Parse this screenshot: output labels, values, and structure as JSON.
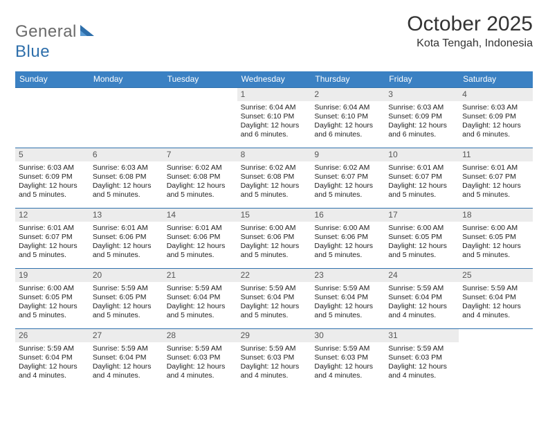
{
  "logo": {
    "general": "General",
    "blue": "Blue",
    "sail_color": "#2e6fab"
  },
  "title": "October 2025",
  "subtitle": "Kota Tengah, Indonesia",
  "colors": {
    "header_bg": "#3b81c3",
    "header_text": "#ffffff",
    "cell_head_bg": "#ececec",
    "border": "#2e6fab",
    "body_text": "#222222"
  },
  "day_headers": [
    "Sunday",
    "Monday",
    "Tuesday",
    "Wednesday",
    "Thursday",
    "Friday",
    "Saturday"
  ],
  "weeks": [
    [
      {
        "num": "",
        "lines": [
          "",
          "",
          "",
          ""
        ]
      },
      {
        "num": "",
        "lines": [
          "",
          "",
          "",
          ""
        ]
      },
      {
        "num": "",
        "lines": [
          "",
          "",
          "",
          ""
        ]
      },
      {
        "num": "1",
        "lines": [
          "Sunrise: 6:04 AM",
          "Sunset: 6:10 PM",
          "Daylight: 12 hours",
          "and 6 minutes."
        ]
      },
      {
        "num": "2",
        "lines": [
          "Sunrise: 6:04 AM",
          "Sunset: 6:10 PM",
          "Daylight: 12 hours",
          "and 6 minutes."
        ]
      },
      {
        "num": "3",
        "lines": [
          "Sunrise: 6:03 AM",
          "Sunset: 6:09 PM",
          "Daylight: 12 hours",
          "and 6 minutes."
        ]
      },
      {
        "num": "4",
        "lines": [
          "Sunrise: 6:03 AM",
          "Sunset: 6:09 PM",
          "Daylight: 12 hours",
          "and 6 minutes."
        ]
      }
    ],
    [
      {
        "num": "5",
        "lines": [
          "Sunrise: 6:03 AM",
          "Sunset: 6:09 PM",
          "Daylight: 12 hours",
          "and 5 minutes."
        ]
      },
      {
        "num": "6",
        "lines": [
          "Sunrise: 6:03 AM",
          "Sunset: 6:08 PM",
          "Daylight: 12 hours",
          "and 5 minutes."
        ]
      },
      {
        "num": "7",
        "lines": [
          "Sunrise: 6:02 AM",
          "Sunset: 6:08 PM",
          "Daylight: 12 hours",
          "and 5 minutes."
        ]
      },
      {
        "num": "8",
        "lines": [
          "Sunrise: 6:02 AM",
          "Sunset: 6:08 PM",
          "Daylight: 12 hours",
          "and 5 minutes."
        ]
      },
      {
        "num": "9",
        "lines": [
          "Sunrise: 6:02 AM",
          "Sunset: 6:07 PM",
          "Daylight: 12 hours",
          "and 5 minutes."
        ]
      },
      {
        "num": "10",
        "lines": [
          "Sunrise: 6:01 AM",
          "Sunset: 6:07 PM",
          "Daylight: 12 hours",
          "and 5 minutes."
        ]
      },
      {
        "num": "11",
        "lines": [
          "Sunrise: 6:01 AM",
          "Sunset: 6:07 PM",
          "Daylight: 12 hours",
          "and 5 minutes."
        ]
      }
    ],
    [
      {
        "num": "12",
        "lines": [
          "Sunrise: 6:01 AM",
          "Sunset: 6:07 PM",
          "Daylight: 12 hours",
          "and 5 minutes."
        ]
      },
      {
        "num": "13",
        "lines": [
          "Sunrise: 6:01 AM",
          "Sunset: 6:06 PM",
          "Daylight: 12 hours",
          "and 5 minutes."
        ]
      },
      {
        "num": "14",
        "lines": [
          "Sunrise: 6:01 AM",
          "Sunset: 6:06 PM",
          "Daylight: 12 hours",
          "and 5 minutes."
        ]
      },
      {
        "num": "15",
        "lines": [
          "Sunrise: 6:00 AM",
          "Sunset: 6:06 PM",
          "Daylight: 12 hours",
          "and 5 minutes."
        ]
      },
      {
        "num": "16",
        "lines": [
          "Sunrise: 6:00 AM",
          "Sunset: 6:06 PM",
          "Daylight: 12 hours",
          "and 5 minutes."
        ]
      },
      {
        "num": "17",
        "lines": [
          "Sunrise: 6:00 AM",
          "Sunset: 6:05 PM",
          "Daylight: 12 hours",
          "and 5 minutes."
        ]
      },
      {
        "num": "18",
        "lines": [
          "Sunrise: 6:00 AM",
          "Sunset: 6:05 PM",
          "Daylight: 12 hours",
          "and 5 minutes."
        ]
      }
    ],
    [
      {
        "num": "19",
        "lines": [
          "Sunrise: 6:00 AM",
          "Sunset: 6:05 PM",
          "Daylight: 12 hours",
          "and 5 minutes."
        ]
      },
      {
        "num": "20",
        "lines": [
          "Sunrise: 5:59 AM",
          "Sunset: 6:05 PM",
          "Daylight: 12 hours",
          "and 5 minutes."
        ]
      },
      {
        "num": "21",
        "lines": [
          "Sunrise: 5:59 AM",
          "Sunset: 6:04 PM",
          "Daylight: 12 hours",
          "and 5 minutes."
        ]
      },
      {
        "num": "22",
        "lines": [
          "Sunrise: 5:59 AM",
          "Sunset: 6:04 PM",
          "Daylight: 12 hours",
          "and 5 minutes."
        ]
      },
      {
        "num": "23",
        "lines": [
          "Sunrise: 5:59 AM",
          "Sunset: 6:04 PM",
          "Daylight: 12 hours",
          "and 5 minutes."
        ]
      },
      {
        "num": "24",
        "lines": [
          "Sunrise: 5:59 AM",
          "Sunset: 6:04 PM",
          "Daylight: 12 hours",
          "and 4 minutes."
        ]
      },
      {
        "num": "25",
        "lines": [
          "Sunrise: 5:59 AM",
          "Sunset: 6:04 PM",
          "Daylight: 12 hours",
          "and 4 minutes."
        ]
      }
    ],
    [
      {
        "num": "26",
        "lines": [
          "Sunrise: 5:59 AM",
          "Sunset: 6:04 PM",
          "Daylight: 12 hours",
          "and 4 minutes."
        ]
      },
      {
        "num": "27",
        "lines": [
          "Sunrise: 5:59 AM",
          "Sunset: 6:04 PM",
          "Daylight: 12 hours",
          "and 4 minutes."
        ]
      },
      {
        "num": "28",
        "lines": [
          "Sunrise: 5:59 AM",
          "Sunset: 6:03 PM",
          "Daylight: 12 hours",
          "and 4 minutes."
        ]
      },
      {
        "num": "29",
        "lines": [
          "Sunrise: 5:59 AM",
          "Sunset: 6:03 PM",
          "Daylight: 12 hours",
          "and 4 minutes."
        ]
      },
      {
        "num": "30",
        "lines": [
          "Sunrise: 5:59 AM",
          "Sunset: 6:03 PM",
          "Daylight: 12 hours",
          "and 4 minutes."
        ]
      },
      {
        "num": "31",
        "lines": [
          "Sunrise: 5:59 AM",
          "Sunset: 6:03 PM",
          "Daylight: 12 hours",
          "and 4 minutes."
        ]
      },
      {
        "num": "",
        "lines": [
          "",
          "",
          "",
          ""
        ]
      }
    ]
  ]
}
